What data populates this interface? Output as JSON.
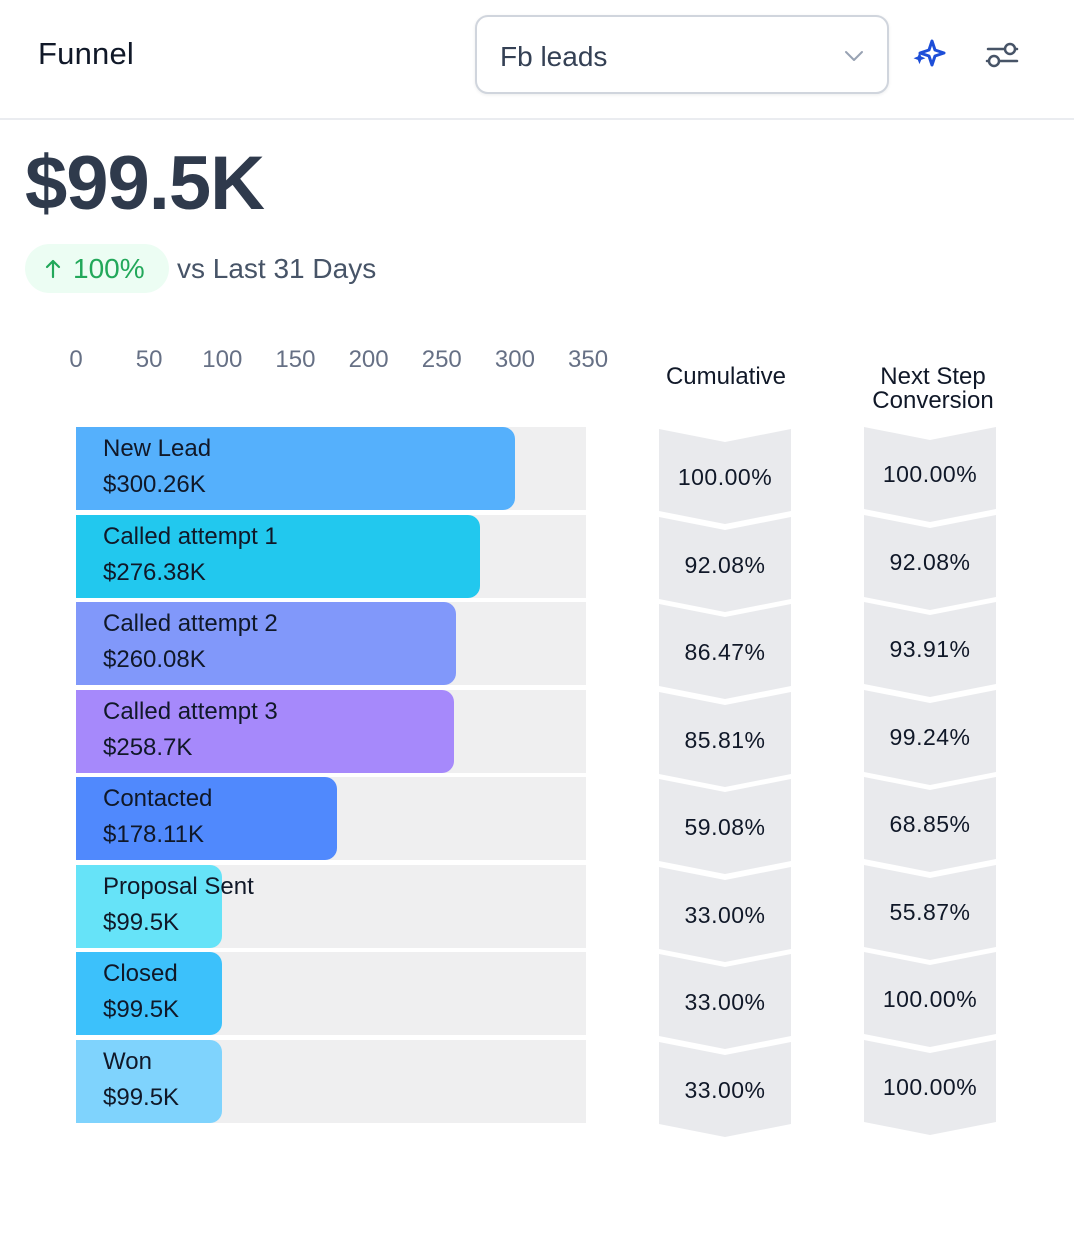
{
  "header": {
    "title": "Funnel",
    "pipeline_select": {
      "value": "Fb leads",
      "icon": "chevron-down-icon"
    },
    "ai_icon": "sparkles-icon",
    "settings_icon": "sliders-icon"
  },
  "summary": {
    "total": "$99.5K",
    "change": "100%",
    "change_direction": "up",
    "compare_label": "vs Last 31 Days"
  },
  "colors": {
    "accent": "#1d4ed8",
    "positive": "#22a85a",
    "positive_bg": "#ecfdf3",
    "track": "#efeff0",
    "chevron": "#e9eaed"
  },
  "columns": {
    "cumulative": "Cumulative",
    "next_step": "Next Step Conversion"
  },
  "chart_data": {
    "type": "bar",
    "orientation": "horizontal",
    "axis_ticks": [
      "0",
      "50",
      "100",
      "150",
      "200",
      "250",
      "300",
      "350"
    ],
    "xlim": [
      0,
      350
    ],
    "categories": [
      "New Lead",
      "Called attempt 1",
      "Called attempt 2",
      "Called attempt 3",
      "Contacted",
      "Proposal Sent",
      "Closed",
      "Won"
    ],
    "values": [
      300.26,
      276.38,
      260.08,
      258.7,
      178.11,
      99.5,
      99.5,
      99.5
    ],
    "value_labels": [
      "$300.26K",
      "$276.38K",
      "$260.08K",
      "$258.7K",
      "$178.11K",
      "$99.5K",
      "$99.5K",
      "$99.5K"
    ],
    "bar_colors": [
      "#55b0fc",
      "#22c8ee",
      "#8198fa",
      "#a689fb",
      "#5089fd",
      "#66e3f8",
      "#3cc1fb",
      "#7fd3fd"
    ],
    "cumulative": [
      "100.00%",
      "92.08%",
      "86.47%",
      "85.81%",
      "59.08%",
      "33.00%",
      "33.00%",
      "33.00%"
    ],
    "next_step_conversion": [
      "100.00%",
      "92.08%",
      "93.91%",
      "99.24%",
      "68.85%",
      "55.87%",
      "100.00%",
      "100.00%"
    ]
  }
}
